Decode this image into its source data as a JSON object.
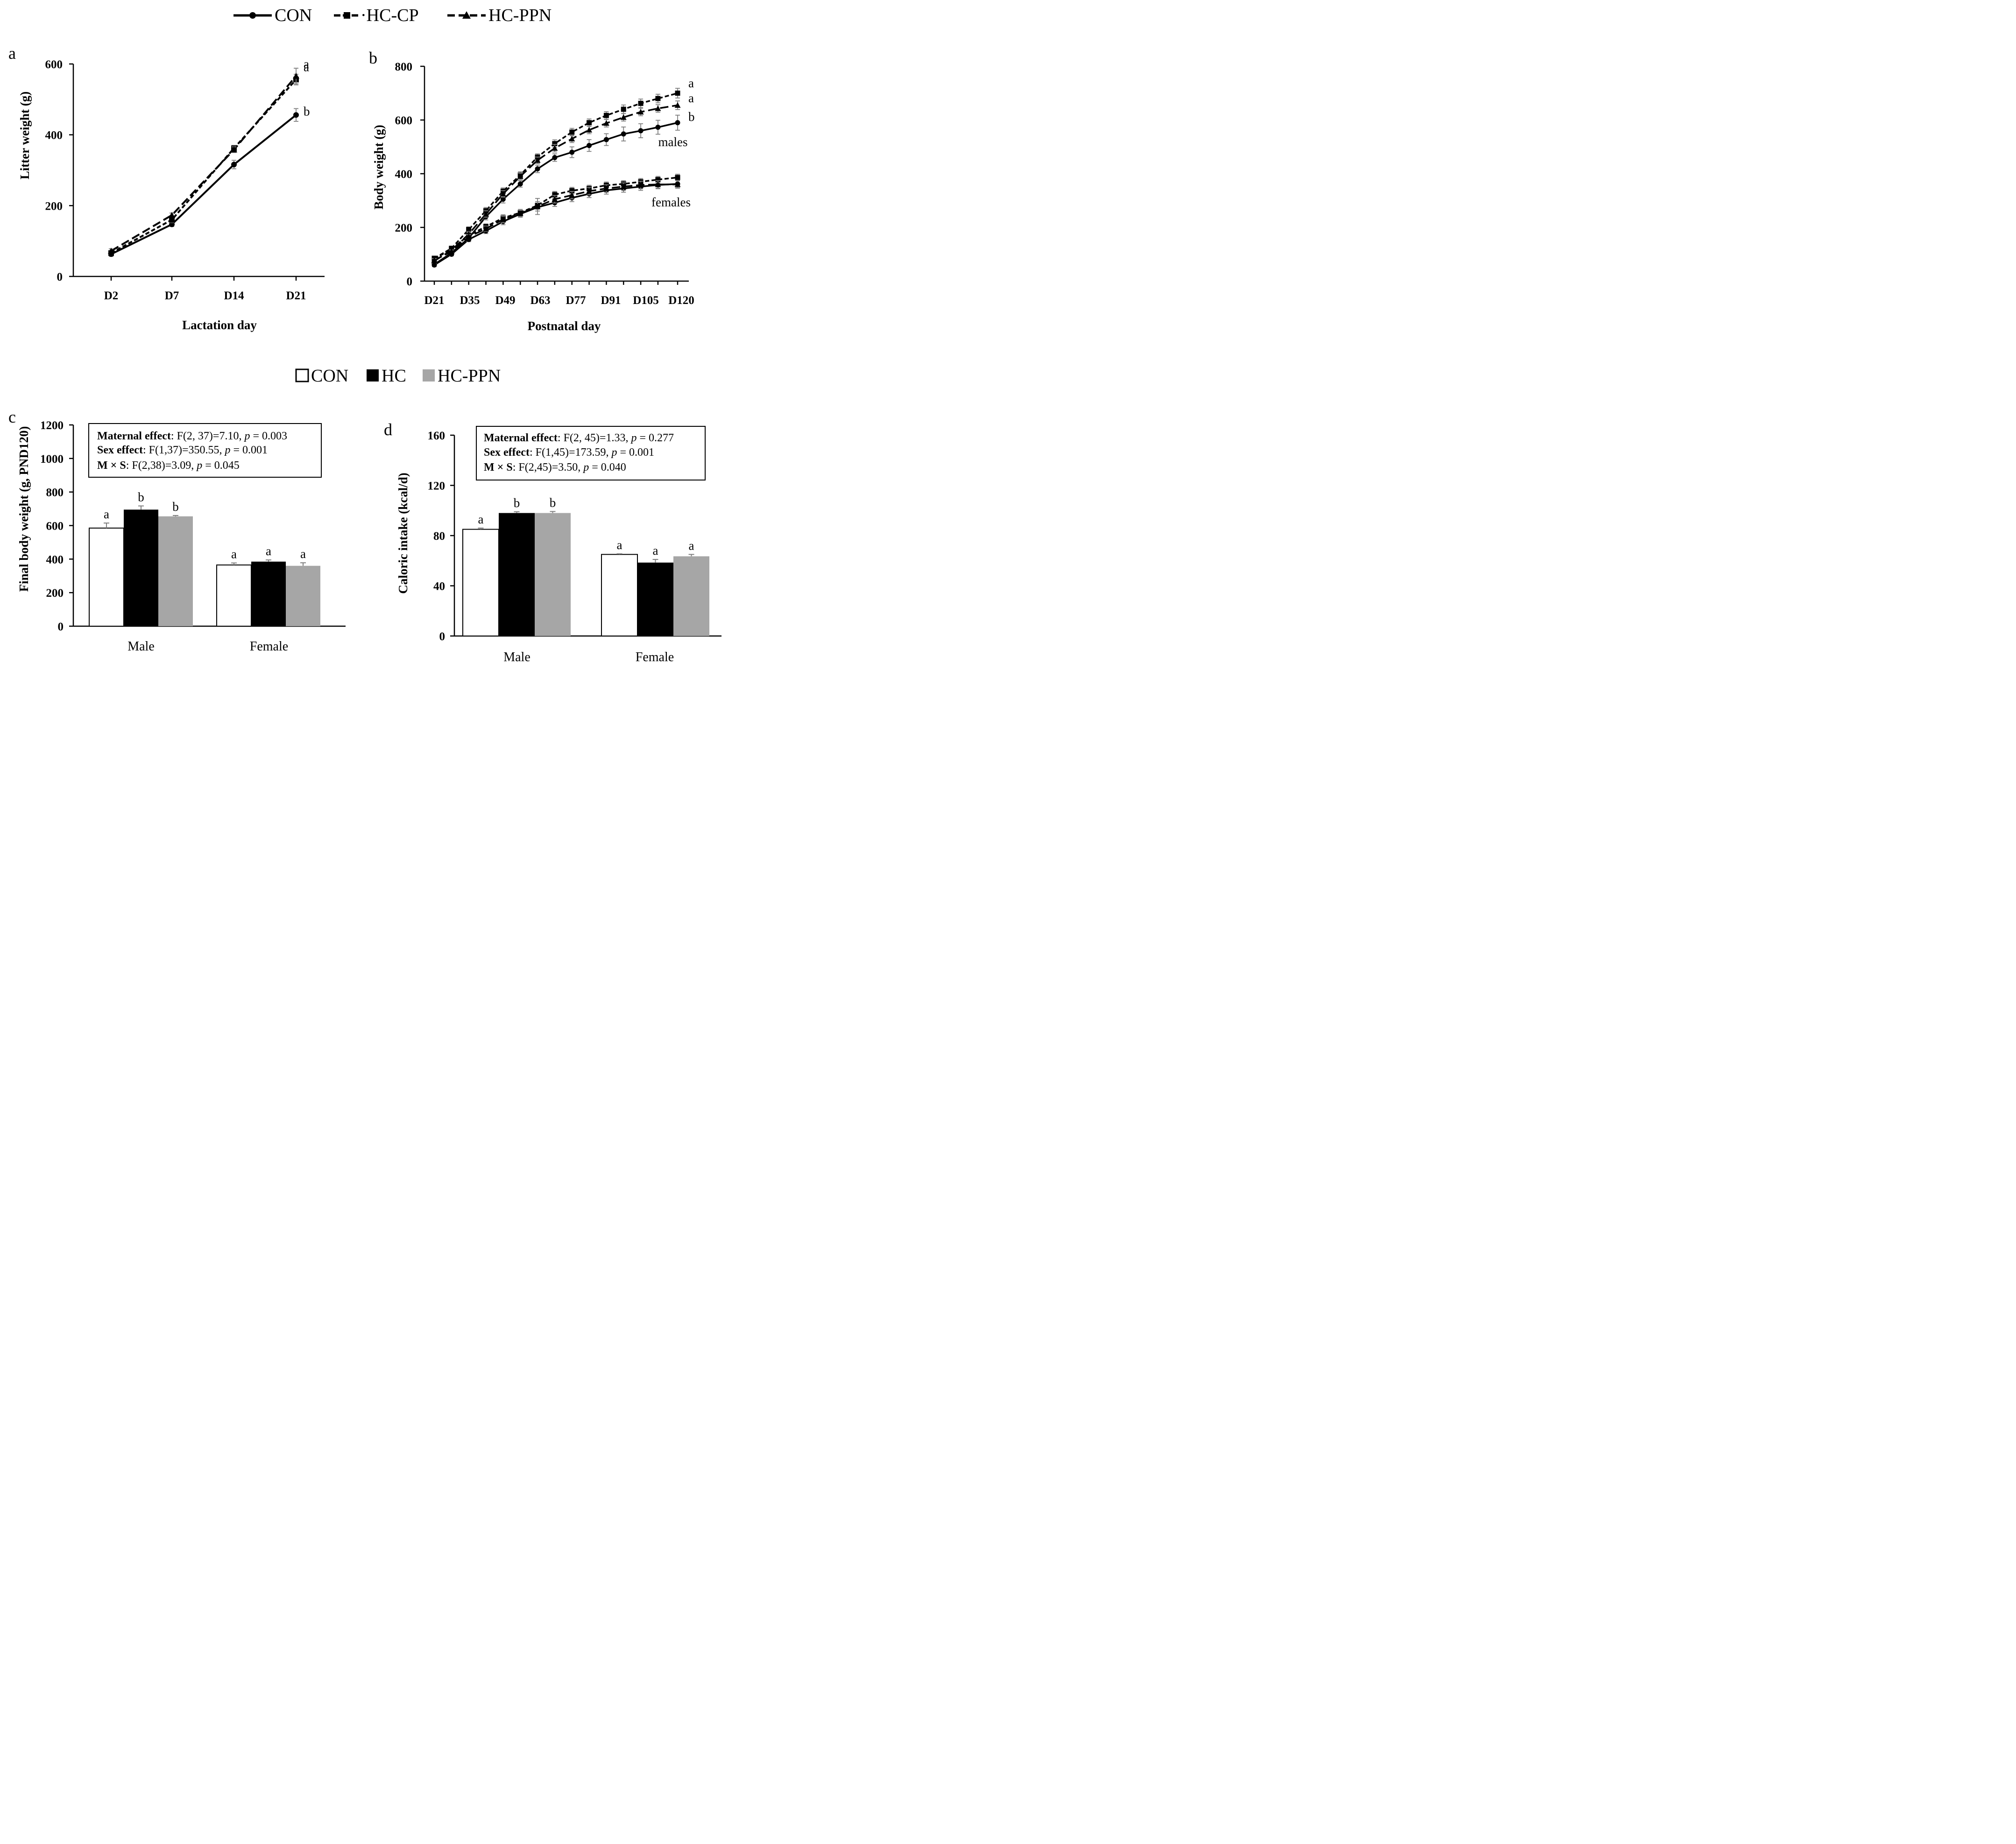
{
  "chart_data": [
    {
      "panel": "a",
      "type": "line",
      "xlabel": "Lactation day",
      "ylabel": "Litter weight (g)",
      "categories": [
        "D2",
        "D7",
        "D14",
        "D21"
      ],
      "ylim": [
        0,
        600
      ],
      "yticks": [
        0,
        200,
        400,
        600
      ],
      "series": [
        {
          "name": "CON",
          "values": [
            63,
            147,
            316,
            456
          ],
          "errors": [
            6,
            6,
            12,
            18
          ]
        },
        {
          "name": "HC-CP",
          "values": [
            66,
            160,
            362,
            556
          ],
          "errors": [
            6,
            8,
            8,
            15
          ]
        },
        {
          "name": "HC-PPN",
          "values": [
            72,
            173,
            358,
            566
          ],
          "errors": [
            6,
            6,
            8,
            22
          ]
        }
      ],
      "significance_labels": [
        "a",
        "a",
        "b"
      ]
    },
    {
      "panel": "b",
      "type": "line",
      "xlabel": "Postnatal day",
      "ylabel": "Body weight (g)",
      "x_days": [
        21,
        28,
        35,
        42,
        49,
        56,
        63,
        70,
        77,
        84,
        91,
        98,
        105,
        112,
        120
      ],
      "tick_labels": [
        "D21",
        "D35",
        "D49",
        "D63",
        "D77",
        "D91",
        "D105",
        "D120"
      ],
      "ylim": [
        0,
        800
      ],
      "yticks": [
        0,
        200,
        400,
        600,
        800
      ],
      "group_labels": [
        "males",
        "females"
      ],
      "series": [
        {
          "name": "CON",
          "group": "males",
          "values": [
            62,
            105,
            160,
            240,
            305,
            362,
            418,
            460,
            480,
            505,
            527,
            548,
            560,
            573,
            590
          ],
          "errors": [
            8,
            8,
            10,
            12,
            14,
            12,
            14,
            14,
            20,
            22,
            22,
            26,
            26,
            26,
            28
          ]
        },
        {
          "name": "HC-CP",
          "group": "males",
          "values": [
            85,
            122,
            192,
            262,
            335,
            395,
            462,
            512,
            555,
            590,
            617,
            640,
            662,
            680,
            700
          ],
          "errors": [
            8,
            8,
            10,
            12,
            12,
            12,
            12,
            14,
            14,
            14,
            14,
            16,
            16,
            16,
            18
          ]
        },
        {
          "name": "HC-PPN",
          "group": "males",
          "values": [
            75,
            115,
            175,
            250,
            325,
            390,
            450,
            495,
            530,
            563,
            588,
            610,
            630,
            643,
            655
          ],
          "errors": [
            8,
            8,
            10,
            12,
            12,
            12,
            12,
            14,
            14,
            14,
            14,
            14,
            14,
            14,
            16
          ]
        },
        {
          "name": "CON",
          "group": "females",
          "values": [
            60,
            100,
            155,
            187,
            222,
            250,
            275,
            292,
            310,
            325,
            338,
            345,
            352,
            358,
            362
          ],
          "errors": [
            6,
            6,
            8,
            10,
            12,
            12,
            14,
            14,
            14,
            14,
            14,
            14,
            14,
            14,
            14
          ]
        },
        {
          "name": "HC-CP",
          "group": "females",
          "values": [
            82,
            120,
            170,
            203,
            235,
            255,
            282,
            322,
            337,
            345,
            357,
            362,
            370,
            378,
            386
          ],
          "errors": [
            6,
            6,
            8,
            10,
            12,
            12,
            14,
            12,
            12,
            12,
            12,
            12,
            12,
            12,
            12
          ]
        },
        {
          "name": "HC-PPN",
          "group": "females",
          "values": [
            78,
            110,
            165,
            195,
            230,
            252,
            278,
            305,
            320,
            335,
            345,
            352,
            358,
            360,
            360
          ],
          "errors": [
            6,
            6,
            8,
            10,
            12,
            12,
            30,
            14,
            14,
            14,
            14,
            14,
            14,
            14,
            14
          ]
        }
      ],
      "significance_labels": [
        "a",
        "a",
        "b"
      ]
    },
    {
      "panel": "c",
      "type": "bar",
      "ylabel": "Final body weight (g, PND120)",
      "categories": [
        "Male",
        "Female"
      ],
      "ylim": [
        0,
        1200
      ],
      "yticks": [
        0,
        200,
        400,
        600,
        800,
        1000,
        1200
      ],
      "series": [
        {
          "name": "CON",
          "values": [
            585,
            365
          ],
          "errors": [
            30,
            12
          ],
          "labels": [
            "a",
            "a"
          ]
        },
        {
          "name": "HC",
          "values": [
            695,
            385
          ],
          "errors": [
            22,
            10
          ],
          "labels": [
            "b",
            "a"
          ]
        },
        {
          "name": "HC-PPN",
          "values": [
            655,
            360
          ],
          "errors": [
            5,
            18
          ],
          "labels": [
            "b",
            "a"
          ]
        }
      ],
      "stats": [
        {
          "term": "Maternal effect",
          "text": ": F(2, 37)=7.10, ",
          "p": " = 0.003"
        },
        {
          "term": "Sex effect",
          "text": ": F(1,37)=350.55, ",
          "p": " = 0.001"
        },
        {
          "term": "M × S",
          "text": ": F(2,38)=3.09, ",
          "p": " = 0.045"
        }
      ]
    },
    {
      "panel": "d",
      "type": "bar",
      "ylabel": "Caloric intake (kcal/d)",
      "categories": [
        "Male",
        "Female"
      ],
      "ylim": [
        0,
        160
      ],
      "yticks": [
        0,
        40,
        80,
        120,
        160
      ],
      "series": [
        {
          "name": "CON",
          "values": [
            85,
            65
          ],
          "errors": [
            1,
            0.5
          ],
          "labels": [
            "a",
            "a"
          ]
        },
        {
          "name": "HC",
          "values": [
            98,
            58.5
          ],
          "errors": [
            1,
            2.5
          ],
          "labels": [
            "b",
            "a"
          ]
        },
        {
          "name": "HC-PPN",
          "values": [
            98,
            63.5
          ],
          "errors": [
            1.2,
            1.5
          ],
          "labels": [
            "b",
            "a"
          ]
        }
      ],
      "stats": [
        {
          "term": "Maternal effect",
          "text": ": F(2, 45)=1.33, ",
          "p": " = 0.277"
        },
        {
          "term": "Sex effect",
          "text": ": F(1,45)=173.59, ",
          "p": " = 0.001"
        },
        {
          "term": "M × S",
          "text": ": F(2,45)=3.50, ",
          "p": " = 0.040"
        }
      ]
    }
  ],
  "legend_top": [
    {
      "name": "CON",
      "label": "CON"
    },
    {
      "name": "HC-CP",
      "label": "·HC-CP"
    },
    {
      "name": "HC-PPN",
      "label": "HC-PPN"
    }
  ],
  "legend_mid": [
    {
      "name": "CON",
      "label": "CON"
    },
    {
      "name": "HC",
      "label": "HC"
    },
    {
      "name": "HC-PPN",
      "label": "HC-PPN"
    }
  ],
  "panel_labels": [
    "a",
    "b",
    "c",
    "d"
  ],
  "p_symbol": "p",
  "colors": {
    "axis": "#000000",
    "errorbar": "#7f7f7f",
    "CON_fill": "#ffffff",
    "HC_fill": "#000000",
    "HC-PPN_fill": "#a6a6a6"
  }
}
